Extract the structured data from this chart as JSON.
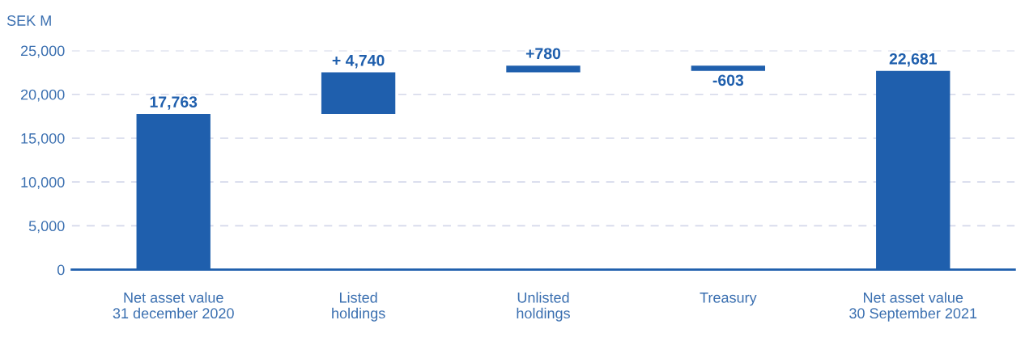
{
  "chart_data": {
    "type": "bar",
    "ylabel": "SEK M",
    "categories": [
      "Net asset value\n31 december 2020",
      "Listed\nholdings",
      "Unlisted\nholdings",
      "Treasury",
      "Net asset value\n30 September 2021"
    ],
    "values": [
      17763,
      4740,
      780,
      -603,
      22681
    ],
    "base": [
      0,
      17763,
      22503,
      23283,
      0
    ],
    "value_labels": [
      "17,763",
      "+ 4,740",
      "+780",
      "-603",
      "22,681"
    ],
    "color": "#1f5fad",
    "ylim": [
      0,
      25000
    ],
    "yticks": [
      {
        "value": 0,
        "label": "0"
      },
      {
        "value": 5000,
        "label": "5,000"
      },
      {
        "value": 10000,
        "label": "10,000"
      },
      {
        "value": 15000,
        "label": "15,000"
      },
      {
        "value": 20000,
        "label": "20,000"
      },
      {
        "value": 25000,
        "label": "25,000"
      }
    ],
    "grid": "y"
  }
}
